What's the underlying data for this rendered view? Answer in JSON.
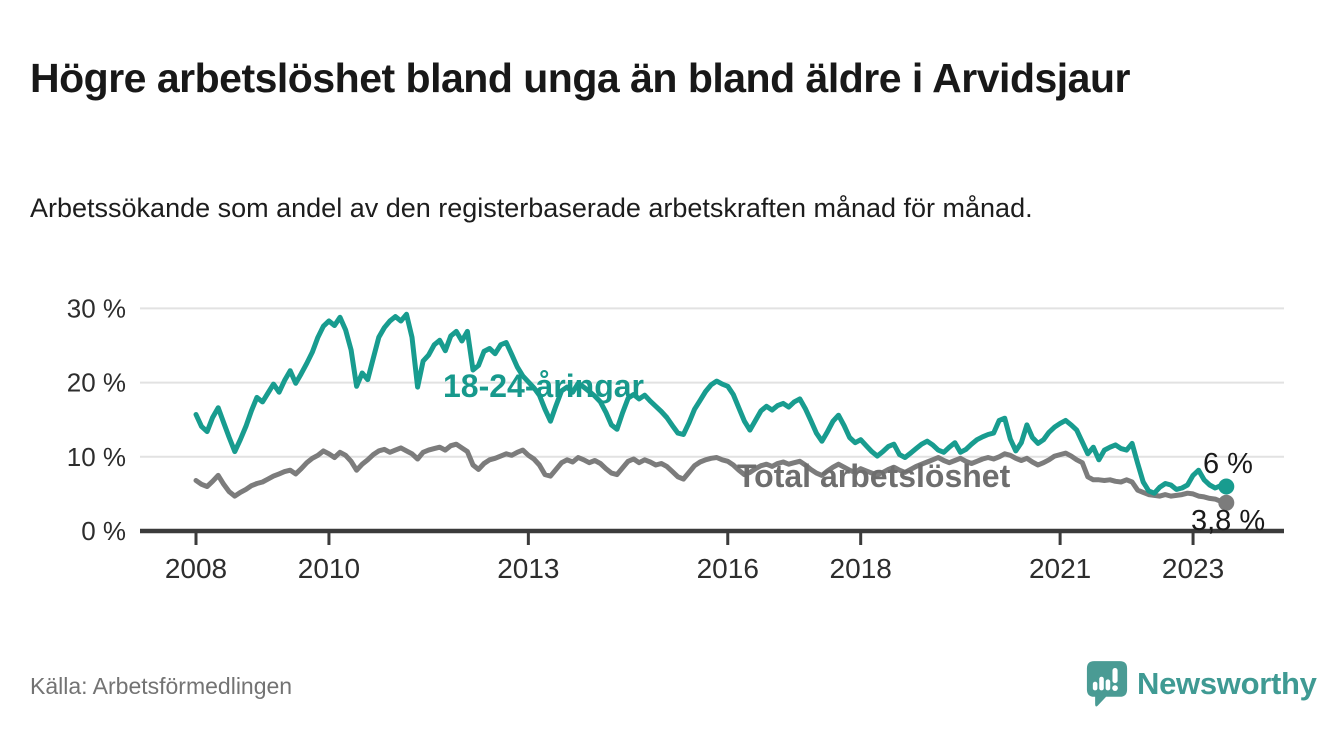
{
  "header": {
    "title": "Högre arbetslöshet bland unga än bland äldre i Arvidsjaur",
    "subtitle": "Arbetssökande som andel av den registerbaserade arbetskraften månad för månad."
  },
  "footer": {
    "source": "Källa: Arbetsförmedlingen",
    "brand": "Newsworthy",
    "logo_icon": "bar-chart-speech-bubble-icon"
  },
  "colors": {
    "young_line": "#189C8F",
    "young_label": "#17998C",
    "total_line": "#7C7C7C",
    "total_label": "#6E6E6E",
    "end_value_label": "#1a1a1a",
    "grid": "#e2e2e2",
    "axis": "#3b3b3b",
    "tick_text": "#2d2d2d",
    "logo": "#4A9B94"
  },
  "chart_data": {
    "type": "line",
    "title": "Högre arbetslöshet bland unga än bland äldre i Arvidsjaur",
    "subtitle": "Arbetssökande som andel av den registerbaserade arbetskraften månad för månad.",
    "x_unit": "month",
    "x_start": "2008-01",
    "x_end": "2023-07",
    "x_tick_years": [
      2008,
      2010,
      2013,
      2016,
      2018,
      2021,
      2023
    ],
    "y_ticks": [
      {
        "value": 0,
        "label": "0 %"
      },
      {
        "value": 10,
        "label": "10 %"
      },
      {
        "value": 20,
        "label": "20 %"
      },
      {
        "value": 30,
        "label": "30 %"
      }
    ],
    "ylim": [
      0,
      30
    ],
    "grid": true,
    "legend_position": "inline-labels",
    "series": [
      {
        "name": "Total arbetslöshet",
        "color": "#7C7C7C",
        "end_label": "3,8 %",
        "end_value": 3.8,
        "values": [
          6.8,
          6.3,
          6.0,
          6.7,
          7.5,
          6.3,
          5.3,
          4.7,
          5.2,
          5.6,
          6.1,
          6.4,
          6.6,
          7.0,
          7.4,
          7.7,
          8.0,
          8.2,
          7.7,
          8.4,
          9.2,
          9.8,
          10.2,
          10.8,
          10.4,
          9.9,
          10.6,
          10.2,
          9.4,
          8.2,
          9.0,
          9.6,
          10.3,
          10.8,
          11.0,
          10.6,
          10.9,
          11.2,
          10.8,
          10.4,
          9.7,
          10.6,
          10.9,
          11.1,
          11.3,
          10.9,
          11.5,
          11.7,
          11.2,
          10.7,
          8.9,
          8.3,
          9.1,
          9.6,
          9.8,
          10.1,
          10.4,
          10.2,
          10.6,
          10.9,
          10.2,
          9.7,
          8.9,
          7.6,
          7.4,
          8.3,
          9.2,
          9.6,
          9.3,
          9.9,
          9.6,
          9.2,
          9.5,
          9.1,
          8.4,
          7.8,
          7.6,
          8.5,
          9.4,
          9.7,
          9.2,
          9.6,
          9.3,
          8.9,
          9.1,
          8.7,
          8.0,
          7.3,
          7.0,
          7.9,
          8.8,
          9.3,
          9.6,
          9.8,
          9.9,
          9.6,
          9.4,
          8.9,
          8.2,
          7.6,
          7.9,
          8.4,
          8.8,
          9.0,
          8.7,
          9.1,
          9.3,
          9.0,
          9.2,
          9.4,
          8.9,
          8.3,
          7.8,
          7.5,
          8.1,
          8.6,
          9.0,
          8.6,
          8.2,
          7.9,
          8.4,
          8.1,
          7.8,
          7.6,
          7.9,
          8.3,
          8.6,
          8.2,
          7.9,
          8.3,
          8.7,
          9.0,
          9.3,
          9.6,
          9.9,
          9.5,
          9.2,
          9.5,
          9.8,
          9.4,
          9.1,
          9.4,
          9.7,
          9.9,
          9.7,
          10.0,
          10.4,
          10.2,
          9.8,
          9.5,
          9.8,
          9.3,
          8.9,
          9.2,
          9.6,
          10.1,
          10.3,
          10.5,
          10.1,
          9.6,
          9.2,
          7.3,
          6.9,
          6.9,
          6.8,
          6.9,
          6.7,
          6.6,
          6.9,
          6.6,
          5.5,
          5.2,
          4.9,
          4.8,
          4.7,
          4.9,
          4.7,
          4.8,
          4.9,
          5.1,
          5.0,
          4.7,
          4.6,
          4.4,
          4.3,
          4.0,
          3.8
        ]
      },
      {
        "name": "18-24-åringar",
        "color": "#189C8F",
        "end_label": "6 %",
        "end_value": 6.0,
        "values": [
          15.7,
          14.1,
          13.4,
          15.3,
          16.6,
          14.6,
          12.6,
          10.7,
          12.3,
          14.1,
          16.2,
          18.0,
          17.4,
          18.6,
          19.8,
          18.7,
          20.3,
          21.6,
          19.9,
          21.2,
          22.6,
          24.1,
          26.1,
          27.6,
          28.3,
          27.7,
          28.8,
          27.1,
          24.4,
          19.5,
          21.3,
          20.4,
          23.3,
          26.1,
          27.4,
          28.3,
          28.9,
          28.3,
          29.2,
          26.1,
          19.4,
          22.9,
          23.7,
          25.1,
          25.7,
          24.3,
          26.3,
          26.9,
          25.6,
          26.9,
          21.7,
          22.3,
          24.2,
          24.6,
          23.9,
          25.1,
          25.4,
          23.8,
          22.1,
          20.9,
          20.1,
          19.3,
          18.3,
          16.4,
          14.8,
          16.9,
          18.9,
          19.4,
          18.7,
          19.9,
          19.4,
          18.8,
          18.2,
          17.4,
          16.0,
          14.3,
          13.7,
          15.9,
          17.9,
          18.4,
          17.8,
          18.3,
          17.5,
          16.8,
          16.1,
          15.3,
          14.2,
          13.2,
          13.0,
          14.6,
          16.4,
          17.6,
          18.8,
          19.7,
          20.2,
          19.8,
          19.5,
          18.4,
          16.6,
          14.8,
          13.6,
          14.9,
          16.2,
          16.8,
          16.3,
          16.9,
          17.2,
          16.7,
          17.4,
          17.8,
          16.5,
          14.9,
          13.2,
          12.1,
          13.4,
          14.8,
          15.6,
          14.2,
          12.6,
          11.9,
          12.3,
          11.5,
          10.7,
          10.1,
          10.7,
          11.4,
          11.7,
          10.3,
          9.9,
          10.5,
          11.1,
          11.7,
          12.1,
          11.6,
          10.9,
          10.6,
          11.3,
          11.9,
          10.6,
          11.0,
          11.7,
          12.3,
          12.7,
          13.0,
          13.2,
          14.9,
          15.2,
          12.4,
          10.8,
          11.9,
          14.3,
          12.6,
          11.8,
          12.3,
          13.3,
          14.0,
          14.5,
          14.9,
          14.3,
          13.6,
          12.0,
          10.4,
          11.3,
          9.6,
          10.9,
          11.3,
          11.6,
          11.1,
          10.9,
          11.8,
          9.1,
          6.6,
          5.4,
          5.1,
          5.9,
          6.4,
          6.2,
          5.6,
          5.8,
          6.2,
          7.5,
          8.2,
          6.9,
          6.2,
          5.8,
          6.1,
          6.0
        ]
      }
    ]
  }
}
